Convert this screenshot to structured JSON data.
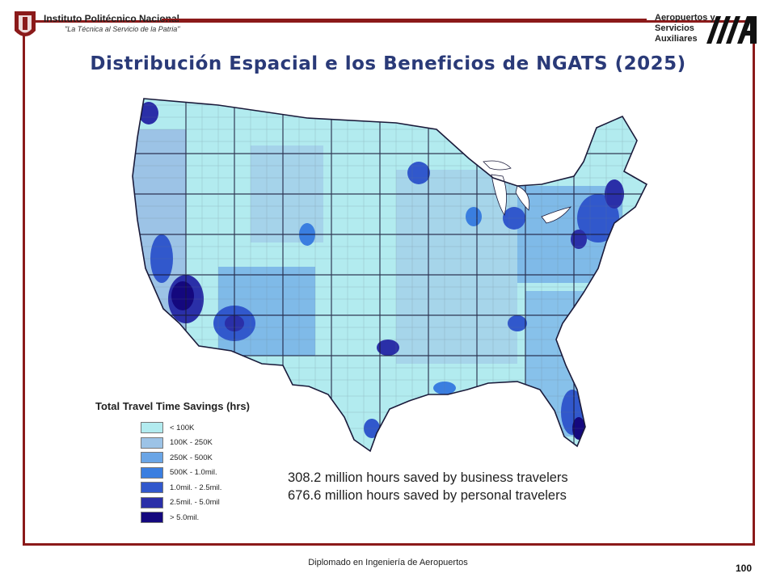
{
  "header": {
    "institution": "Instituto Politécnico Nacional",
    "motto": "\"La Técnica al Servicio de la Patria\"",
    "partner_line1": "Aeropuertos y",
    "partner_line2": "Servicios",
    "partner_line3": "Auxiliares",
    "partner_logo_letters": "A"
  },
  "title": "Distribución Espacial e los Beneficios de NGATS (2025)",
  "map": {
    "subject": "Contiguous United States counties",
    "colors": {
      "water": "#ffffff",
      "border": "#1a1a3a"
    }
  },
  "legend": {
    "title": "Total Travel Time Savings (hrs)",
    "items": [
      {
        "label": "< 100K",
        "color": "#b2ebef"
      },
      {
        "label": "100K - 250K",
        "color": "#9cc3e6"
      },
      {
        "label": "250K - 500K",
        "color": "#6aa5e6"
      },
      {
        "label": "500K - 1.0mil.",
        "color": "#3a7ee0"
      },
      {
        "label": "1.0mil. - 2.5mil.",
        "color": "#3158cc"
      },
      {
        "label": "2.5mil. - 5.0mil",
        "color": "#2a2fa8"
      },
      {
        "label": "> 5.0mil.",
        "color": "#14087e"
      }
    ]
  },
  "stats": {
    "business": "308.2 million hours saved by business travelers",
    "personal": "676.6 million hours saved by personal travelers"
  },
  "footer": {
    "course": "Diplomado en Ingeniería de Aeropuertos",
    "page": "100"
  }
}
